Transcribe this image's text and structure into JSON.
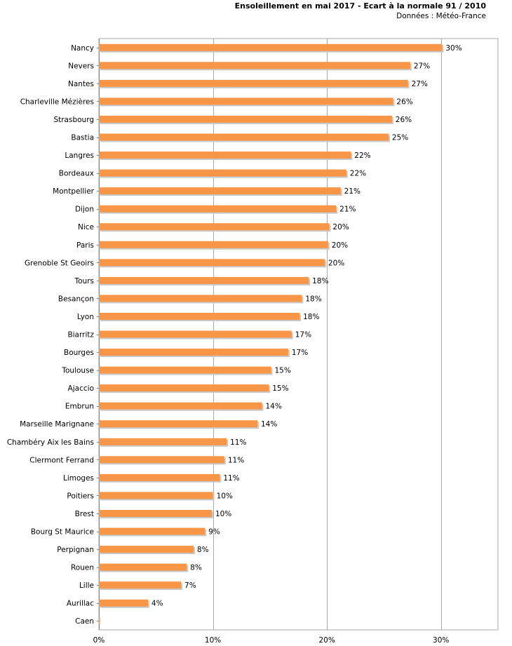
{
  "chart_data": {
    "type": "bar",
    "orientation": "horizontal",
    "title": "Ensoleillement en mai 2017 - Ecart à la normale 91 / 2010",
    "subtitle": "Données : Météo-France",
    "categories": [
      "Nancy",
      "Nevers",
      "Nantes",
      "Charleville Mézières",
      "Strasbourg",
      "Bastia",
      "Langres",
      "Bordeaux",
      "Montpellier",
      "Dijon",
      "Nice",
      "Paris",
      "Grenoble St Geoirs",
      "Tours",
      "Besançon",
      "Lyon",
      "Biarritz",
      "Bourges",
      "Toulouse",
      "Ajaccio",
      "Embrun",
      "Marseille Marignane",
      "Chambéry Aix les Bains",
      "Clermont Ferrand",
      "Limoges",
      "Poitiers",
      "Brest",
      "Bourg St Maurice",
      "Perpignan",
      "Rouen",
      "Lille",
      "Aurillac",
      "Caen"
    ],
    "values": [
      30.1,
      27.3,
      27.1,
      25.8,
      25.7,
      25.4,
      22.1,
      21.7,
      21.2,
      20.8,
      20.2,
      20.1,
      19.8,
      18.4,
      17.8,
      17.6,
      16.9,
      16.6,
      15.1,
      14.9,
      14.3,
      13.9,
      11.2,
      11.0,
      10.6,
      10.0,
      9.9,
      9.3,
      8.3,
      7.7,
      7.2,
      4.3,
      0
    ],
    "data_labels": [
      "30%",
      "27%",
      "27%",
      "26%",
      "26%",
      "25%",
      "22%",
      "22%",
      "21%",
      "21%",
      "20%",
      "20%",
      "20%",
      "18%",
      "18%",
      "18%",
      "17%",
      "17%",
      "15%",
      "15%",
      "14%",
      "14%",
      "11%",
      "11%",
      "11%",
      "10%",
      "10%",
      "9%",
      "8%",
      "8%",
      "7%",
      "4%",
      ""
    ],
    "x_ticks": [
      "0%",
      "10%",
      "20%",
      "30%"
    ],
    "xlim": [
      0,
      35
    ],
    "grid": true,
    "bar_color": "#f79646",
    "shadow_color": "#c8c8c8",
    "grid_color": "#aaaaaa"
  }
}
